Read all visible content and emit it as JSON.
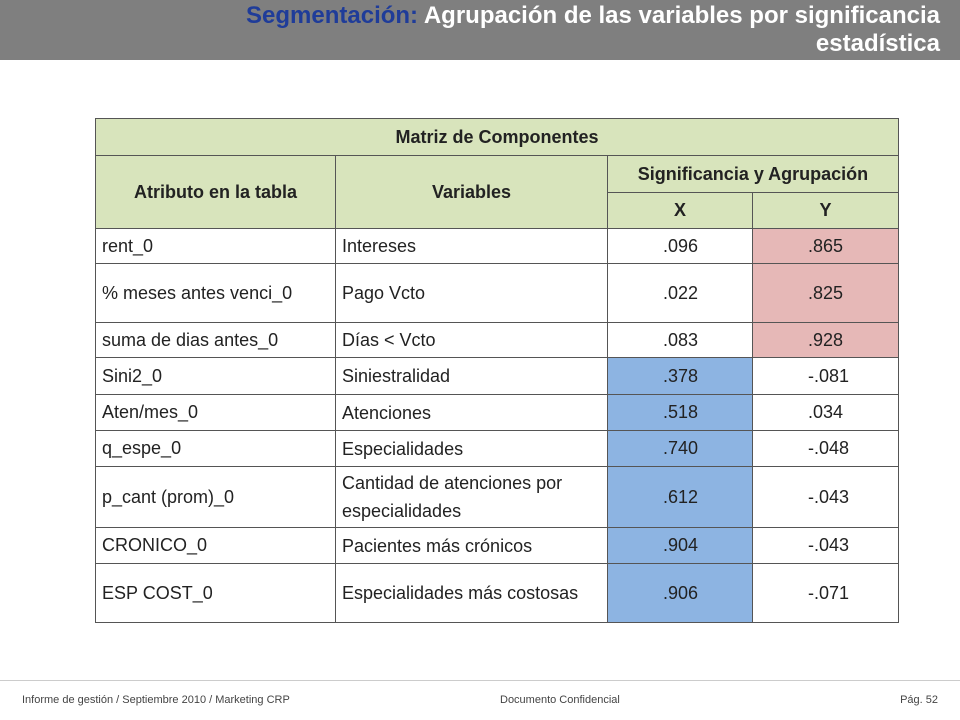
{
  "header": {
    "title_highlight": "Segmentación:",
    "title_rest": "Agrupación de las variables por significancia estadística"
  },
  "table": {
    "title": "Matriz de Componentes",
    "headers": {
      "attribute": "Atributo en la tabla",
      "variables": "Variables",
      "group": "Significancia y Agrupación",
      "x": "X",
      "y": "Y"
    },
    "rows": [
      [
        "rent_0",
        "Intereses",
        ".096",
        ".865"
      ],
      [
        "% meses antes venci_0",
        "Pago Vcto",
        ".022",
        ".825"
      ],
      [
        "suma de dias antes_0",
        "Días < Vcto",
        ".083",
        ".928"
      ],
      [
        "Sini2_0",
        "Siniestralidad",
        ".378",
        "-.081"
      ],
      [
        "Aten/mes_0",
        "Atenciones",
        ".518",
        ".034"
      ],
      [
        "q_espe_0",
        "Especialidades",
        ".740",
        "-.048"
      ],
      [
        "p_cant (prom)_0",
        "Cantidad de atenciones por especialidades",
        ".612",
        "-.043"
      ],
      [
        "CRONICO_0",
        "Pacientes más crónicos",
        ".904",
        "-.043"
      ],
      [
        "ESP COST_0",
        "Especialidades más costosas",
        ".906",
        "-.071"
      ]
    ]
  },
  "footer": {
    "left": "Informe de gestión / Septiembre 2010 / Marketing CRP",
    "center": "Documento Confidencial",
    "right": "Pág. 52"
  }
}
